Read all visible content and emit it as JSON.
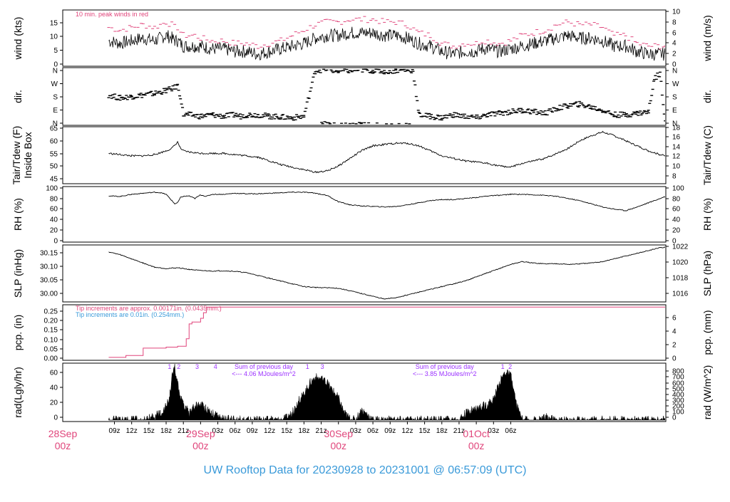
{
  "footer": {
    "title": "UW Rooftop Data for 20230928  to  20231001 @ 06:57:09  (UTC)",
    "title_color": "#3A9AD9"
  },
  "colors": {
    "axis": "#000000",
    "peak": "#E0457B",
    "tip_bucket_1": "#E0457B",
    "tip_bucket_2": "#3A9AD9",
    "annotation": "#9B30FF",
    "date_label": "#E0457B",
    "line": "#000000"
  },
  "chart_data": [
    {
      "type": "line",
      "id": "wind",
      "ylabel_left": "wind (kts)",
      "ylabel_right": "wind (m/s)",
      "ylim": [
        0,
        20
      ],
      "left_ticks": [
        "0",
        "5",
        "10",
        "15"
      ],
      "right_ticks": [
        "0",
        "2",
        "4",
        "6",
        "8",
        "10"
      ],
      "annotation": "10 min. peak winds in red",
      "series": [
        {
          "role": "wind",
          "x": [
            8.0,
            10,
            12,
            14,
            16,
            17,
            18,
            19,
            19.5,
            20,
            21,
            22,
            23,
            24,
            26,
            28,
            30,
            32,
            34,
            36,
            38,
            40,
            42,
            44,
            46,
            48,
            50,
            52,
            54,
            56,
            58,
            60,
            62,
            64,
            66,
            68,
            70,
            72,
            73,
            74,
            76,
            78,
            80,
            82,
            84,
            86,
            88,
            90,
            92,
            94,
            96,
            98,
            100,
            102,
            104,
            104.9
          ],
          "y": [
            9,
            8,
            9,
            10,
            9,
            10,
            11,
            10,
            9,
            9,
            7,
            7,
            7,
            7,
            6,
            6,
            5,
            5,
            4,
            5,
            6,
            7,
            8,
            10,
            11,
            11,
            12,
            12,
            12,
            11,
            11,
            10,
            8,
            7,
            5,
            4,
            5,
            5,
            6,
            6,
            5,
            6,
            7,
            8,
            9,
            10,
            11,
            10,
            10,
            9,
            7,
            7,
            5,
            4,
            4,
            4
          ]
        },
        {
          "role": "peak",
          "x": [
            8.0,
            10,
            12,
            14,
            16,
            17,
            18,
            19,
            19.5,
            20,
            21,
            22,
            23,
            24,
            26,
            28,
            30,
            32,
            34,
            36,
            38,
            40,
            42,
            44,
            46,
            48,
            50,
            52,
            54,
            56,
            58,
            60,
            62,
            64,
            66,
            68,
            70,
            72,
            73,
            74,
            76,
            78,
            80,
            82,
            84,
            86,
            88,
            90,
            92,
            94,
            96,
            98,
            100,
            102,
            104,
            104.9
          ],
          "y": [
            14,
            13,
            14,
            15,
            14,
            15,
            16,
            15,
            14,
            14,
            11,
            11,
            11,
            10,
            9,
            9,
            8,
            8,
            7,
            8,
            9,
            11,
            13,
            15,
            16,
            16,
            17,
            17,
            17,
            16,
            16,
            15,
            12,
            11,
            8,
            7,
            8,
            8,
            9,
            9,
            8,
            9,
            11,
            12,
            13,
            15,
            16,
            15,
            15,
            14,
            11,
            11,
            8,
            7,
            7,
            7
          ]
        }
      ]
    },
    {
      "type": "scatter",
      "id": "dir",
      "ylabel_left": "dir.",
      "ylabel_right": "dir.",
      "ylim": [
        0,
        360
      ],
      "left_ticks": [
        "N",
        "E",
        "S",
        "W",
        "N"
      ],
      "right_ticks": [
        "N",
        "E",
        "S",
        "W",
        "N"
      ],
      "x": [
        8.0,
        10,
        12,
        14,
        16,
        18,
        19,
        20,
        20.5,
        21,
        22,
        24,
        26,
        28,
        30,
        31,
        32,
        34,
        36,
        38,
        40,
        42,
        44,
        46,
        48,
        50,
        52,
        54,
        56,
        58,
        60,
        61,
        62,
        64,
        66,
        68,
        70,
        72,
        74,
        76,
        78,
        80,
        82,
        84,
        86,
        88,
        90,
        92,
        94,
        96,
        98,
        100,
        102,
        103,
        104,
        104.9
      ],
      "y": [
        190,
        170,
        180,
        190,
        200,
        220,
        230,
        250,
        180,
        60,
        60,
        50,
        60,
        50,
        60,
        50,
        60,
        60,
        50,
        45,
        40,
        50,
        350,
        360,
        345,
        350,
        355,
        350,
        345,
        350,
        355,
        350,
        60,
        50,
        40,
        60,
        50,
        40,
        60,
        70,
        80,
        90,
        80,
        70,
        100,
        120,
        130,
        110,
        90,
        60,
        60,
        70,
        80,
        300,
        330,
        20
      ]
    },
    {
      "type": "line",
      "id": "temp",
      "ylabel_left": "Tair/Tdew (F)\nInside Box",
      "ylabel_right": "Tair/Tdew (C)",
      "ylim": [
        43.5,
        65
      ],
      "left_ticks": [
        "45",
        "50",
        "55",
        "60",
        "65"
      ],
      "right_ticks": [
        "8",
        "10",
        "12",
        "14",
        "16",
        "18"
      ],
      "x": [
        8.0,
        10,
        12,
        14,
        16,
        18,
        19,
        20,
        20.5,
        21,
        22,
        24,
        26,
        28,
        30,
        32,
        34,
        36,
        38,
        40,
        42,
        44,
        46,
        48,
        50,
        52,
        54,
        56,
        58,
        60,
        62,
        64,
        66,
        68,
        70,
        72,
        74,
        76,
        78,
        80,
        82,
        84,
        86,
        88,
        90,
        92,
        94,
        96,
        98,
        100,
        102,
        104,
        104.9
      ],
      "y": [
        55,
        54.5,
        54,
        54,
        54.5,
        56,
        57,
        59.5,
        57,
        56,
        55.5,
        55,
        55,
        55,
        54.5,
        54,
        53.5,
        52,
        50.5,
        49.5,
        48.5,
        47.5,
        48,
        50,
        53,
        56,
        58,
        58.5,
        59,
        59,
        58,
        56,
        54,
        53,
        52,
        51.5,
        51,
        50,
        49.5,
        51,
        52,
        53,
        55,
        57,
        60,
        62,
        63.5,
        62,
        60,
        58,
        56,
        54.5,
        54
      ]
    },
    {
      "type": "line",
      "id": "rh",
      "ylabel_left": "RH (%)",
      "ylabel_right": "RH (%)",
      "ylim": [
        0,
        100
      ],
      "left_ticks": [
        "0",
        "20",
        "40",
        "60",
        "80",
        "100"
      ],
      "right_ticks": [
        "0",
        "20",
        "40",
        "60",
        "80",
        "100"
      ],
      "x": [
        8.0,
        10,
        12,
        14,
        16,
        17,
        18,
        19,
        19.5,
        20,
        20.5,
        21,
        22,
        23,
        24,
        25,
        26,
        28,
        30,
        32,
        34,
        36,
        38,
        40,
        42,
        44,
        46,
        48,
        50,
        52,
        54,
        56,
        58,
        60,
        62,
        64,
        66,
        68,
        70,
        72,
        74,
        76,
        78,
        80,
        82,
        84,
        86,
        88,
        90,
        92,
        94,
        96,
        98,
        100,
        102,
        104,
        104.9
      ],
      "y": [
        85,
        84,
        88,
        90,
        92,
        91,
        88,
        76,
        70,
        72,
        82,
        84,
        85,
        80,
        87,
        84,
        88,
        88,
        90,
        89,
        89,
        90,
        91,
        92,
        92,
        90,
        86,
        74,
        68,
        66,
        65,
        64,
        65,
        68,
        72,
        76,
        78,
        78,
        80,
        82,
        85,
        86,
        88,
        88,
        87,
        86,
        84,
        80,
        76,
        70,
        64,
        60,
        57,
        64,
        72,
        80,
        84
      ]
    },
    {
      "type": "line",
      "id": "slp",
      "ylabel_left": "SLP (inHg)",
      "ylabel_right": "SLP (hPa)",
      "ylim": [
        29.98,
        30.175
      ],
      "left_ticks": [
        "30.00",
        "30.05",
        "30.10",
        "30.15"
      ],
      "right_ticks": [
        "1016",
        "1018",
        "1020",
        "1022"
      ],
      "x": [
        8.0,
        10,
        12,
        14,
        16,
        18,
        20,
        22,
        24,
        26,
        28,
        30,
        32,
        34,
        36,
        38,
        40,
        42,
        44,
        46,
        48,
        50,
        52,
        54,
        56,
        58,
        60,
        62,
        64,
        66,
        68,
        70,
        72,
        74,
        76,
        78,
        80,
        82,
        84,
        86,
        88,
        90,
        92,
        94,
        96,
        98,
        100,
        102,
        104,
        104.9
      ],
      "y": [
        30.155,
        30.145,
        30.13,
        30.115,
        30.1,
        30.095,
        30.098,
        30.092,
        30.088,
        30.086,
        30.087,
        30.085,
        30.08,
        30.07,
        30.06,
        30.05,
        30.04,
        30.03,
        30.027,
        30.026,
        30.024,
        30.015,
        30.005,
        29.995,
        29.985,
        29.99,
        30.0,
        30.01,
        30.02,
        30.03,
        30.04,
        30.05,
        30.065,
        30.08,
        30.095,
        30.11,
        30.12,
        30.115,
        30.112,
        30.113,
        30.11,
        30.112,
        30.115,
        30.12,
        30.13,
        30.14,
        30.15,
        30.16,
        30.17,
        30.172
      ]
    },
    {
      "type": "line",
      "id": "pcp",
      "ylabel_left": "pcp. (in)",
      "ylabel_right": "pcp. (mm)",
      "ylim": [
        -0.008,
        0.275
      ],
      "left_ticks": [
        "0.00",
        "0.05",
        "0.10",
        "0.15",
        "0.20",
        "0.25"
      ],
      "right_ticks": [
        "0",
        "2",
        "4",
        "6"
      ],
      "annotation_1": "Tip increments are approx. 0.00171in. (0.0435mm.)",
      "annotation_2": "Tip increments are 0.01in. (0.254mm.)",
      "x": [
        8.0,
        9,
        11,
        12,
        14,
        16,
        17,
        18,
        19,
        20,
        21,
        21.5,
        22,
        22.5,
        23.5,
        24,
        24.5,
        25,
        26,
        104.9
      ],
      "y": [
        0,
        0,
        0.01,
        0.01,
        0.05,
        0.05,
        0.05,
        0.055,
        0.055,
        0.06,
        0.06,
        0.1,
        0.18,
        0.19,
        0.19,
        0.21,
        0.24,
        0.27,
        0.27,
        0.27
      ]
    },
    {
      "type": "area",
      "id": "rad",
      "ylabel_left": "rad(Lgly/hr)",
      "ylabel_right": "rad (W/m^2)",
      "ylim": [
        0,
        75
      ],
      "left_ticks": [
        "0",
        "20",
        "40",
        "60"
      ],
      "right_ticks": [
        "0",
        "100",
        "200",
        "300",
        "400",
        "500",
        "600",
        "700",
        "800"
      ],
      "day_markers": [
        {
          "x": 18.6,
          "label": "1"
        },
        {
          "x": 20.2,
          "label": "2"
        },
        {
          "x": 23.4,
          "label": "3"
        },
        {
          "x": 26.6,
          "label": "4"
        },
        {
          "x": 42.6,
          "label": "1"
        },
        {
          "x": 45.2,
          "label": "3"
        },
        {
          "x": 76.6,
          "label": "1"
        },
        {
          "x": 77.9,
          "label": "2"
        }
      ],
      "sums": [
        {
          "x": 35,
          "line1": "Sum of previous day",
          "line2": "<--- 4.06 MJoules/m^2"
        },
        {
          "x": 66.5,
          "line1": "Sum of previous day",
          "line2": "<--- 3.85 MJoules/m^2"
        }
      ],
      "x": [
        8.0,
        14,
        15,
        16,
        17,
        18,
        18.6,
        19,
        19.5,
        20,
        20.5,
        21,
        22,
        23,
        24,
        25,
        26,
        27,
        28,
        32,
        38,
        39,
        40,
        41,
        42,
        43,
        44,
        45,
        46,
        47,
        48,
        49,
        50,
        51,
        52,
        53,
        54,
        58,
        62,
        63,
        64,
        65,
        66,
        67,
        68,
        69,
        70,
        71,
        72,
        73,
        74,
        75,
        76,
        77,
        78,
        79,
        80,
        83,
        84,
        85,
        86,
        90,
        104.9
      ],
      "y": [
        0,
        0,
        2,
        5,
        10,
        18,
        30,
        58,
        70,
        50,
        30,
        20,
        10,
        18,
        22,
        16,
        10,
        4,
        1,
        0,
        0,
        3,
        10,
        25,
        35,
        50,
        58,
        55,
        50,
        40,
        30,
        10,
        2,
        0,
        14,
        8,
        0,
        0,
        0,
        0,
        0,
        0,
        0,
        0,
        0,
        2,
        8,
        12,
        16,
        18,
        22,
        28,
        50,
        65,
        60,
        20,
        0,
        0,
        4,
        2,
        0,
        0,
        0
      ]
    }
  ],
  "x_axis": {
    "ticks": [
      "09z",
      "12z",
      "15z",
      "18z",
      "21z",
      "00z",
      "03z",
      "06z",
      "09z",
      "12z",
      "15z",
      "18z",
      "21z",
      "00z",
      "03z",
      "06z",
      "09z",
      "12z",
      "15z",
      "18z",
      "21z",
      "00z",
      "03z",
      "06z"
    ],
    "day_labels": [
      {
        "x": 0,
        "day": "28Sep",
        "hour": "00z"
      },
      {
        "x": 24,
        "day": "29Sep",
        "hour": "00z"
      },
      {
        "x": 48,
        "day": "30Sep",
        "hour": "00z"
      },
      {
        "x": 72,
        "day": "01Oct",
        "hour": "00z"
      }
    ]
  }
}
